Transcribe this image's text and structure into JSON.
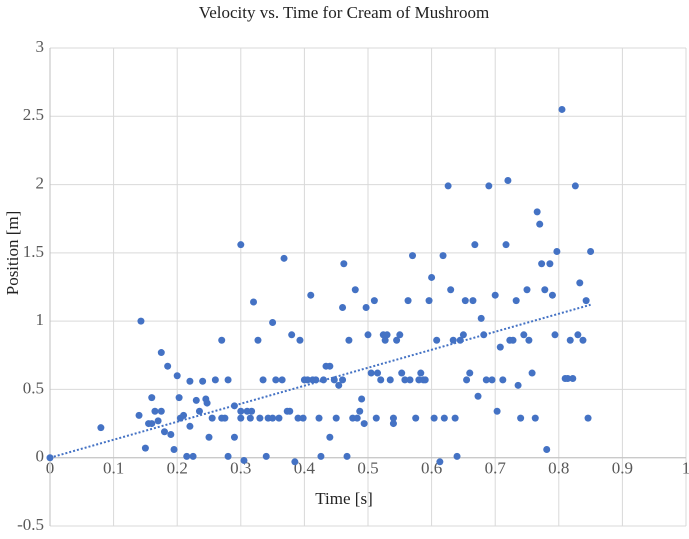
{
  "chart_data": {
    "type": "scatter",
    "title": "Velocity vs. Time for Cream of Mushroom",
    "x_label": "Time [s]",
    "y_label": "Position [m]",
    "xlim": [
      0,
      1
    ],
    "ylim": [
      -0.5,
      3
    ],
    "xticks": [
      0,
      0.1,
      0.2,
      0.3,
      0.4,
      0.5,
      0.6,
      0.7,
      0.8,
      0.9,
      1
    ],
    "yticks": [
      -0.5,
      0,
      0.5,
      1,
      1.5,
      2,
      2.5,
      3
    ],
    "grid": true,
    "color": "#4472c4",
    "x": [
      0,
      0.08,
      0.143,
      0.14,
      0.15,
      0.155,
      0.16,
      0.16,
      0.165,
      0.17,
      0.175,
      0.175,
      0.18,
      0.185,
      0.19,
      0.195,
      0.2,
      0.203,
      0.205,
      0.21,
      0.215,
      0.22,
      0.22,
      0.225,
      0.23,
      0.235,
      0.24,
      0.245,
      0.247,
      0.25,
      0.255,
      0.26,
      0.27,
      0.27,
      0.275,
      0.28,
      0.28,
      0.29,
      0.29,
      0.3,
      0.3,
      0.3,
      0.305,
      0.31,
      0.315,
      0.317,
      0.32,
      0.327,
      0.33,
      0.335,
      0.34,
      0.343,
      0.35,
      0.35,
      0.355,
      0.36,
      0.365,
      0.368,
      0.373,
      0.377,
      0.38,
      0.385,
      0.39,
      0.393,
      0.398,
      0.4,
      0.405,
      0.41,
      0.413,
      0.418,
      0.423,
      0.426,
      0.43,
      0.434,
      0.44,
      0.44,
      0.447,
      0.45,
      0.454,
      0.46,
      0.462,
      0.46,
      0.467,
      0.47,
      0.476,
      0.48,
      0.483,
      0.487,
      0.49,
      0.494,
      0.497,
      0.5,
      0.505,
      0.51,
      0.513,
      0.515,
      0.52,
      0.524,
      0.527,
      0.53,
      0.535,
      0.54,
      0.54,
      0.545,
      0.55,
      0.553,
      0.558,
      0.563,
      0.566,
      0.57,
      0.575,
      0.58,
      0.583,
      0.587,
      0.59,
      0.596,
      0.6,
      0.604,
      0.608,
      0.613,
      0.618,
      0.62,
      0.626,
      0.63,
      0.634,
      0.637,
      0.64,
      0.645,
      0.65,
      0.653,
      0.655,
      0.66,
      0.665,
      0.668,
      0.673,
      0.678,
      0.682,
      0.686,
      0.69,
      0.695,
      0.7,
      0.703,
      0.708,
      0.712,
      0.717,
      0.72,
      0.723,
      0.728,
      0.733,
      0.736,
      0.74,
      0.745,
      0.75,
      0.753,
      0.758,
      0.763,
      0.766,
      0.77,
      0.773,
      0.778,
      0.781,
      0.786,
      0.79,
      0.794,
      0.797,
      0.805,
      0.81,
      0.814,
      0.818,
      0.822,
      0.826,
      0.83,
      0.833,
      0.838,
      0.843,
      0.846,
      0.85
    ],
    "y": [
      0,
      0.22,
      1.0,
      0.31,
      0.07,
      0.25,
      0.44,
      0.25,
      0.34,
      0.27,
      0.34,
      0.77,
      0.19,
      0.67,
      0.17,
      0.06,
      0.6,
      0.44,
      0.29,
      0.31,
      0.01,
      0.23,
      0.56,
      0.01,
      0.42,
      0.34,
      0.56,
      0.43,
      0.4,
      0.15,
      0.29,
      0.57,
      0.29,
      0.86,
      0.29,
      0.01,
      0.57,
      0.15,
      0.38,
      1.56,
      0.29,
      0.34,
      -0.02,
      0.34,
      0.29,
      0.34,
      1.14,
      0.86,
      0.29,
      0.57,
      0.01,
      0.29,
      0.99,
      0.29,
      0.57,
      0.29,
      0.57,
      1.46,
      0.34,
      0.34,
      0.9,
      -0.03,
      0.29,
      0.86,
      0.29,
      0.57,
      0.57,
      1.19,
      0.57,
      0.57,
      0.29,
      0.01,
      0.57,
      0.67,
      0.15,
      0.67,
      0.57,
      0.29,
      0.53,
      0.57,
      1.42,
      1.1,
      0.01,
      0.86,
      0.29,
      1.23,
      0.29,
      0.34,
      0.43,
      0.25,
      1.1,
      0.9,
      0.62,
      1.15,
      0.29,
      0.62,
      0.57,
      0.9,
      0.86,
      0.9,
      0.57,
      0.29,
      0.25,
      0.86,
      0.9,
      0.62,
      0.57,
      1.15,
      0.57,
      1.48,
      0.29,
      0.57,
      0.62,
      0.57,
      0.57,
      1.15,
      1.32,
      0.29,
      0.86,
      -0.03,
      1.48,
      0.29,
      1.99,
      1.23,
      0.86,
      0.29,
      0.01,
      0.86,
      0.9,
      1.15,
      0.57,
      0.62,
      1.15,
      1.56,
      0.45,
      1.02,
      0.9,
      0.57,
      1.99,
      0.57,
      1.19,
      0.34,
      0.81,
      0.57,
      1.56,
      2.03,
      0.86,
      0.86,
      1.15,
      0.53,
      0.29,
      0.9,
      1.23,
      0.86,
      0.62,
      0.29,
      1.8,
      1.71,
      1.42,
      1.23,
      0.06,
      1.42,
      1.19,
      0.9,
      1.51,
      2.55,
      0.58,
      0.58,
      0.86,
      0.58,
      1.99,
      0.9,
      1.28,
      0.86,
      1.15,
      0.29,
      1.51
    ],
    "trendline": {
      "x": [
        0,
        0.85
      ],
      "y": [
        0,
        1.12
      ]
    }
  }
}
